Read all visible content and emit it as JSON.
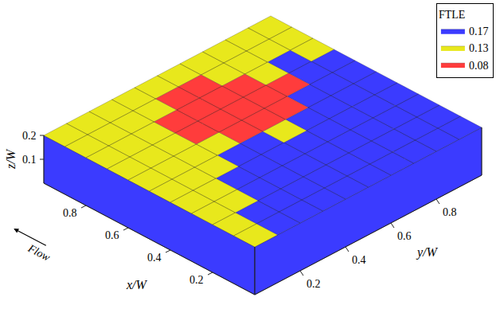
{
  "chart_data": {
    "type": "isosurface_3d",
    "legend_title": "FTLE",
    "legend": "top right",
    "series": [
      {
        "name": "0.17",
        "color": "#3b3bff"
      },
      {
        "name": "0.13",
        "color": "#e8e81c"
      },
      {
        "name": "0.08",
        "color": "#ff3c3c"
      }
    ],
    "xlabel": "x/W",
    "ylabel": "y/W",
    "zlabel": "z/W",
    "xlim": [
      0,
      1
    ],
    "ylim": [
      0,
      1
    ],
    "zlim": [
      0,
      0.2
    ],
    "xticks": [
      0.2,
      0.4,
      0.6,
      0.8
    ],
    "yticks": [
      0.2,
      0.4,
      0.6,
      0.8
    ],
    "zticks": [
      0.1,
      0.2
    ],
    "annotations": [
      {
        "text": "Flow"
      }
    ],
    "cells": {
      "x": [
        0.05,
        0.15,
        0.25,
        0.35,
        0.45,
        0.55,
        0.65,
        0.75,
        0.85,
        0.95
      ],
      "y": [
        0.05,
        0.15,
        0.25,
        0.35,
        0.45,
        0.55,
        0.65,
        0.75,
        0.85,
        0.95
      ],
      "values": [
        [
          0.13,
          0.17,
          0.17,
          0.17,
          0.17,
          0.17,
          0.17,
          0.17,
          0.17,
          0.17
        ],
        [
          0.13,
          0.17,
          0.17,
          0.17,
          0.17,
          0.17,
          0.17,
          0.17,
          0.17,
          0.17
        ],
        [
          0.13,
          0.13,
          0.17,
          0.17,
          0.17,
          0.17,
          0.17,
          0.17,
          0.17,
          0.17
        ],
        [
          0.13,
          0.13,
          0.17,
          0.17,
          0.17,
          0.17,
          0.17,
          0.17,
          0.17,
          0.17
        ],
        [
          0.13,
          0.13,
          0.13,
          0.17,
          0.17,
          0.13,
          0.17,
          0.17,
          0.17,
          0.17
        ],
        [
          0.13,
          0.13,
          0.13,
          0.13,
          0.08,
          0.08,
          0.08,
          0.17,
          0.17,
          0.17
        ],
        [
          0.13,
          0.13,
          0.13,
          0.08,
          0.08,
          0.08,
          0.08,
          0.08,
          0.17,
          0.17
        ],
        [
          0.13,
          0.13,
          0.13,
          0.08,
          0.08,
          0.08,
          0.08,
          0.13,
          0.17,
          0.13
        ],
        [
          0.13,
          0.13,
          0.13,
          0.13,
          0.08,
          0.08,
          0.13,
          0.13,
          0.13,
          0.13
        ],
        [
          0.13,
          0.13,
          0.13,
          0.13,
          0.13,
          0.13,
          0.13,
          0.13,
          0.13,
          0.13
        ]
      ]
    }
  }
}
